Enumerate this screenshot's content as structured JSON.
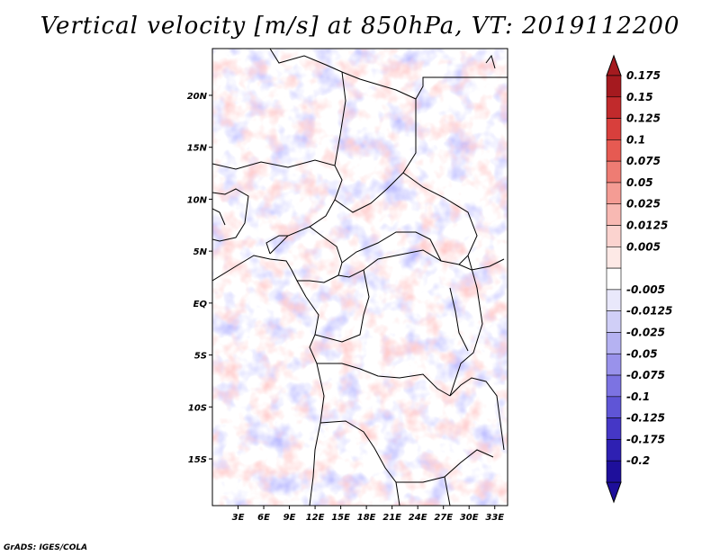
{
  "title": "Vertical velocity [m/s] at 850hPa, VT: 2019112200",
  "credit": "GrADS: IGES/COLA",
  "map": {
    "lon_range": [
      0,
      34.5
    ],
    "lat_range": [
      -19.5,
      24.5
    ],
    "lat_ticks": [
      {
        "value": 20,
        "label": "20N"
      },
      {
        "value": 15,
        "label": "15N"
      },
      {
        "value": 10,
        "label": "10N"
      },
      {
        "value": 5,
        "label": "5N"
      },
      {
        "value": 0,
        "label": "EQ"
      },
      {
        "value": -5,
        "label": "5S"
      },
      {
        "value": -10,
        "label": "10S"
      },
      {
        "value": -15,
        "label": "15S"
      }
    ],
    "lon_ticks": [
      {
        "value": 3,
        "label": "3E"
      },
      {
        "value": 6,
        "label": "6E"
      },
      {
        "value": 9,
        "label": "9E"
      },
      {
        "value": 12,
        "label": "12E"
      },
      {
        "value": 15,
        "label": "15E"
      },
      {
        "value": 18,
        "label": "18E"
      },
      {
        "value": 21,
        "label": "21E"
      },
      {
        "value": 24,
        "label": "24E"
      },
      {
        "value": 27,
        "label": "27E"
      },
      {
        "value": 30,
        "label": "30E"
      },
      {
        "value": 33,
        "label": "33E"
      }
    ]
  },
  "colorbar": {
    "bins": [
      {
        "label": "0.175",
        "color": "#a51a1f"
      },
      {
        "label": "0.15",
        "color": "#c12a2c"
      },
      {
        "label": "0.125",
        "color": "#d83f3c"
      },
      {
        "label": "0.1",
        "color": "#e65a52"
      },
      {
        "label": "0.075",
        "color": "#ee7c73"
      },
      {
        "label": "0.05",
        "color": "#f49c94"
      },
      {
        "label": "0.025",
        "color": "#f8b9b3"
      },
      {
        "label": "0.0125",
        "color": "#fbd3cf"
      },
      {
        "label": "0.005",
        "color": "#fde9e6"
      },
      {
        "label": "",
        "color": "#ffffff"
      },
      {
        "label": "-0.005",
        "color": "#e9e8fb"
      },
      {
        "label": "-0.0125",
        "color": "#d0cff7"
      },
      {
        "label": "-0.025",
        "color": "#b5b2f2"
      },
      {
        "label": "-0.05",
        "color": "#9992eb"
      },
      {
        "label": "-0.075",
        "color": "#7c73e2"
      },
      {
        "label": "-0.1",
        "color": "#5f55d6"
      },
      {
        "label": "-0.125",
        "color": "#4537c6"
      },
      {
        "label": "-0.175",
        "color": "#2e20b2"
      },
      {
        "label": "-0.2",
        "color": "#1e0f9b"
      }
    ],
    "top_arrow_color": "#a51a1f",
    "bottom_arrow_color": "#1e0f9b"
  }
}
